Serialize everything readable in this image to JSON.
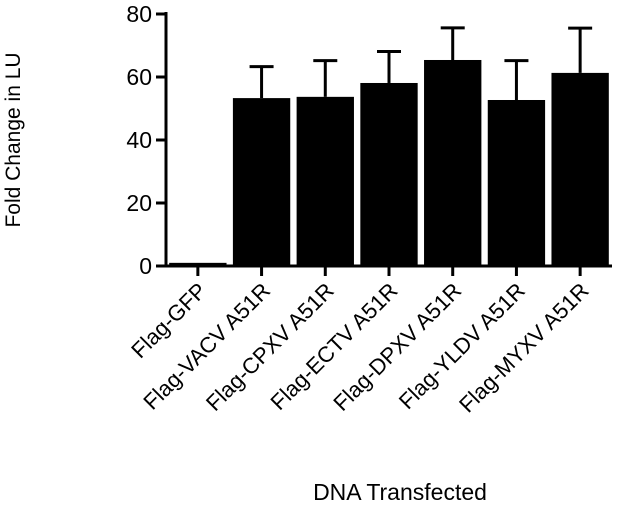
{
  "chart_data": {
    "type": "bar",
    "y_label": "Fold Change in LU",
    "x_label": "DNA Transfected",
    "categories": [
      "Flag-GFP",
      "Flag-VACV A51R",
      "Flag-CPXV A51R",
      "Flag-ECTV A51R",
      "Flag-DPXV A51R",
      "Flag-YLDV A51R",
      "Flag-MYXV A51R"
    ],
    "values": [
      1,
      53.3,
      53.7,
      58.1,
      65.4,
      52.7,
      61.3
    ],
    "errors": [
      0,
      10,
      11.5,
      10,
      10.2,
      12.5,
      14.2
    ],
    "color": "#000000",
    "ylim": [
      0,
      80
    ],
    "yticks": [
      0,
      20,
      40,
      60,
      80
    ]
  }
}
